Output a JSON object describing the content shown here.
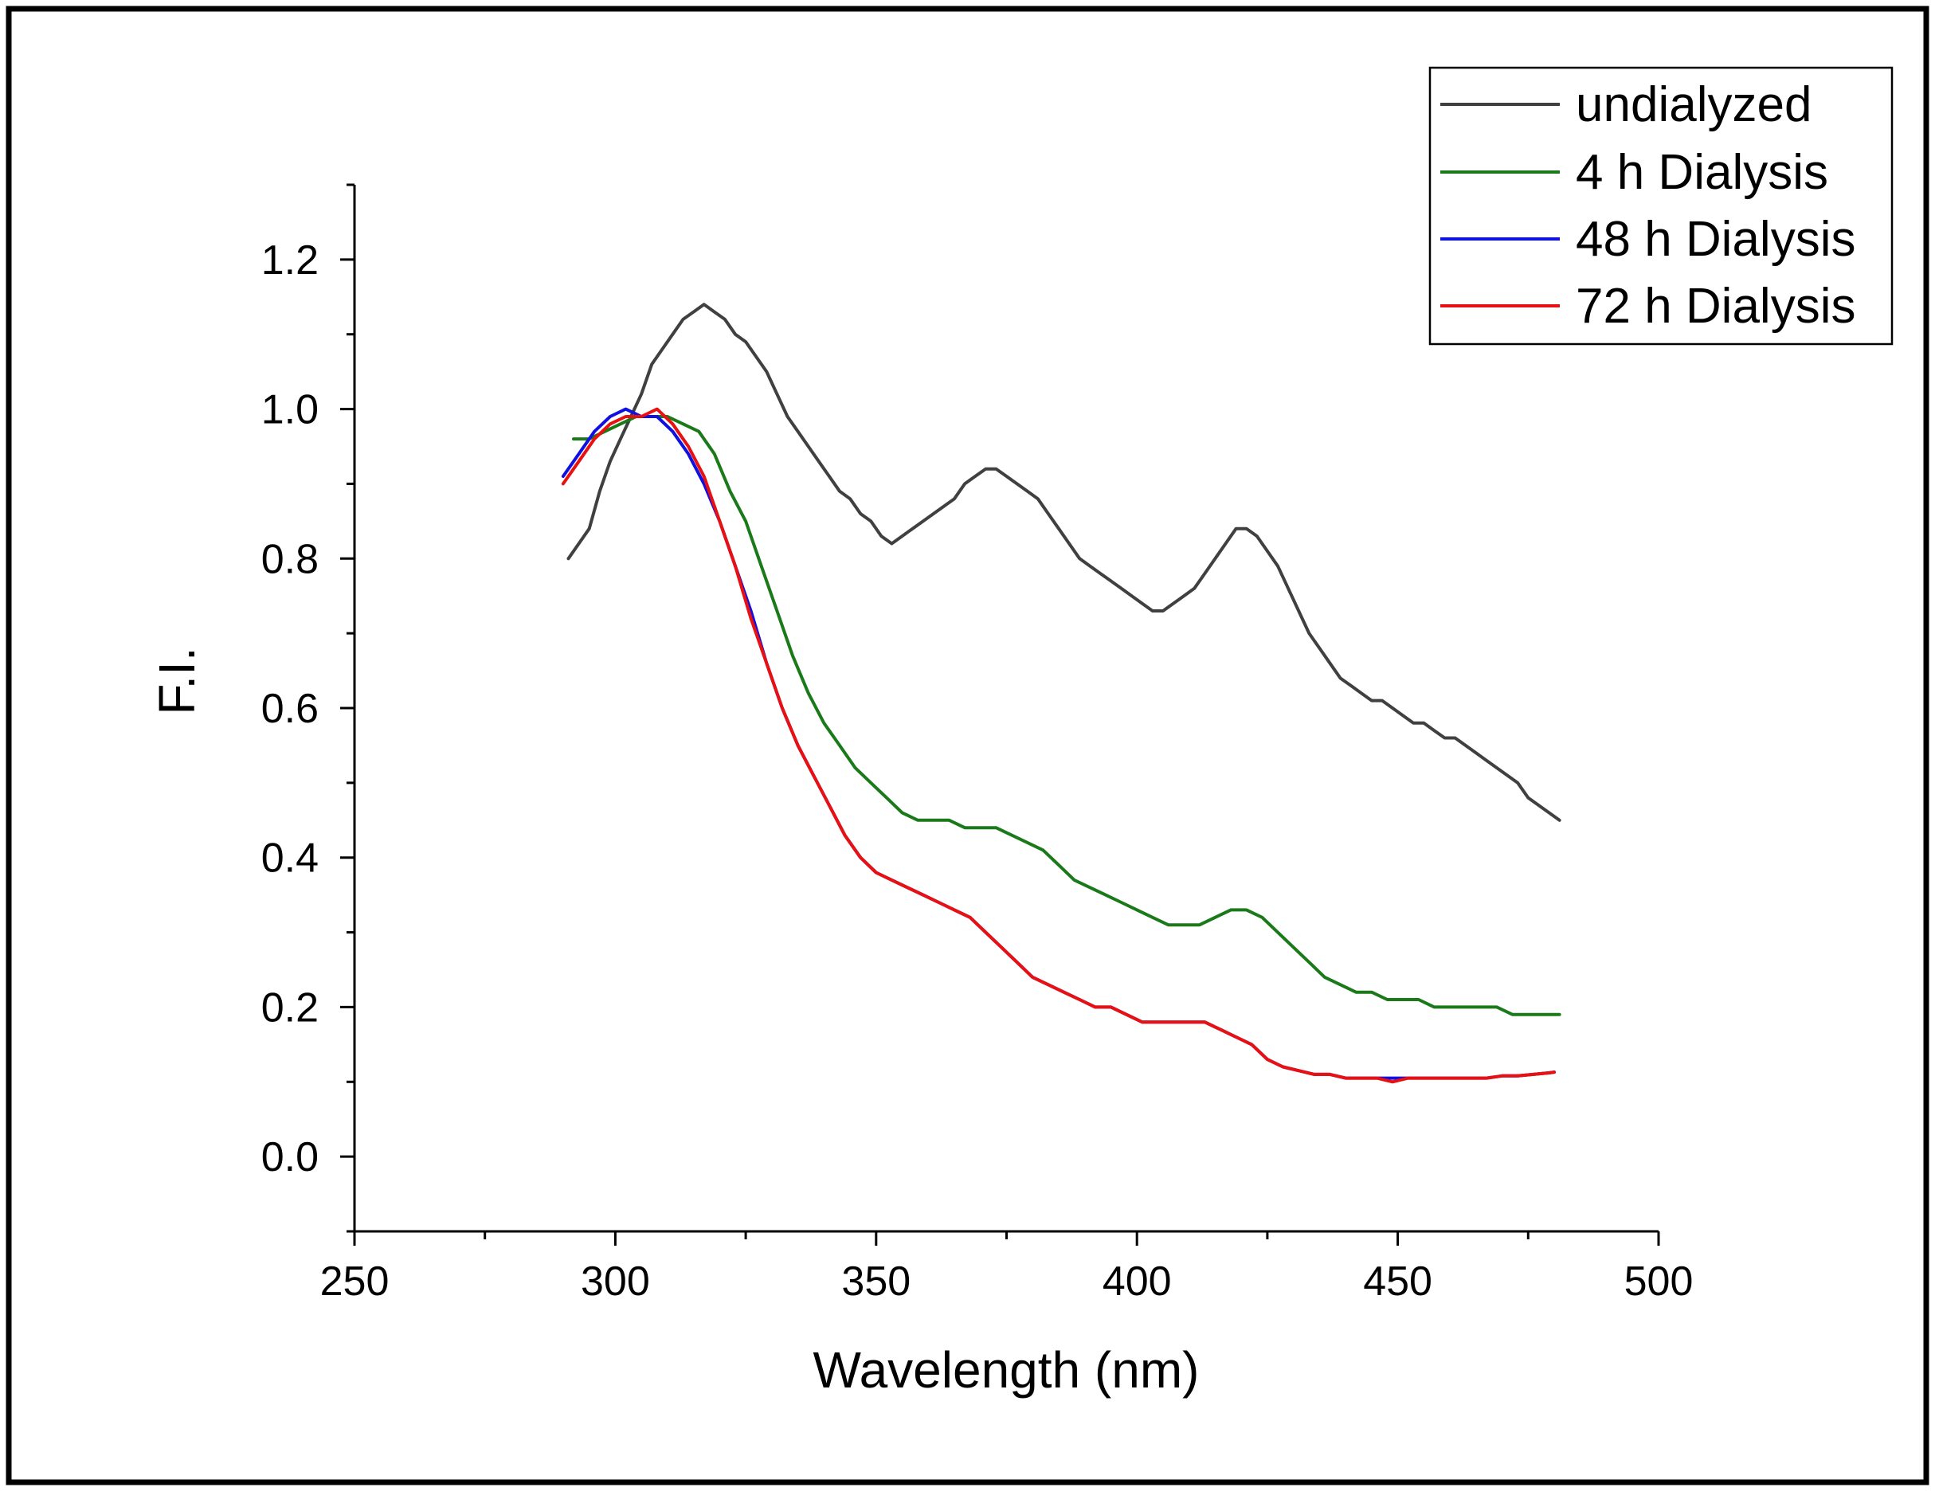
{
  "chart_data": {
    "type": "line",
    "title": "",
    "xlabel": "Wavelength (nm)",
    "ylabel": "F.I.",
    "xlim": [
      250,
      500
    ],
    "ylim": [
      -0.1,
      1.3
    ],
    "xticks": [
      250,
      300,
      350,
      400,
      450,
      500
    ],
    "xtick_labels": [
      "250",
      "300",
      "350",
      "400",
      "450",
      "500"
    ],
    "yticks": [
      0.0,
      0.2,
      0.4,
      0.6,
      0.8,
      1.0,
      1.2
    ],
    "ytick_labels": [
      "0.0",
      "0.2",
      "0.4",
      "0.6",
      "0.8",
      "1.0",
      "1.2"
    ],
    "grid": false,
    "legend_position": "top-right",
    "series": [
      {
        "name": "undialyzed",
        "color": "#404040",
        "x": [
          291,
          293,
          295,
          297,
          299,
          301,
          303,
          305,
          307,
          309,
          311,
          313,
          315,
          317,
          319,
          321,
          323,
          325,
          327,
          329,
          331,
          333,
          335,
          337,
          339,
          341,
          343,
          345,
          347,
          349,
          351,
          353,
          355,
          357,
          359,
          361,
          363,
          365,
          367,
          369,
          371,
          373,
          375,
          377,
          379,
          381,
          383,
          385,
          387,
          389,
          391,
          393,
          395,
          397,
          399,
          401,
          403,
          405,
          407,
          409,
          411,
          413,
          415,
          417,
          419,
          421,
          423,
          425,
          427,
          429,
          431,
          433,
          435,
          437,
          439,
          441,
          443,
          445,
          447,
          449,
          451,
          453,
          455,
          457,
          459,
          461,
          463,
          465,
          467,
          469,
          471,
          473,
          475,
          477,
          479,
          481
        ],
        "y": [
          0.8,
          0.82,
          0.84,
          0.89,
          0.93,
          0.96,
          0.99,
          1.02,
          1.06,
          1.08,
          1.1,
          1.12,
          1.13,
          1.14,
          1.13,
          1.12,
          1.1,
          1.09,
          1.07,
          1.05,
          1.02,
          0.99,
          0.97,
          0.95,
          0.93,
          0.91,
          0.89,
          0.88,
          0.86,
          0.85,
          0.83,
          0.82,
          0.83,
          0.84,
          0.85,
          0.86,
          0.87,
          0.88,
          0.9,
          0.91,
          0.92,
          0.92,
          0.91,
          0.9,
          0.89,
          0.88,
          0.86,
          0.84,
          0.82,
          0.8,
          0.79,
          0.78,
          0.77,
          0.76,
          0.75,
          0.74,
          0.73,
          0.73,
          0.74,
          0.75,
          0.76,
          0.78,
          0.8,
          0.82,
          0.84,
          0.84,
          0.83,
          0.81,
          0.79,
          0.76,
          0.73,
          0.7,
          0.68,
          0.66,
          0.64,
          0.63,
          0.62,
          0.61,
          0.61,
          0.6,
          0.59,
          0.58,
          0.58,
          0.57,
          0.56,
          0.56,
          0.55,
          0.54,
          0.53,
          0.52,
          0.51,
          0.5,
          0.48,
          0.47,
          0.46,
          0.45
        ]
      },
      {
        "name": "4 h Dialysis",
        "color": "#1a7a1a",
        "x": [
          292,
          295,
          298,
          301,
          304,
          307,
          310,
          313,
          316,
          319,
          322,
          325,
          328,
          331,
          334,
          337,
          340,
          343,
          346,
          349,
          352,
          355,
          358,
          361,
          364,
          367,
          370,
          373,
          376,
          379,
          382,
          385,
          388,
          391,
          394,
          397,
          400,
          403,
          406,
          409,
          412,
          415,
          418,
          421,
          424,
          427,
          430,
          433,
          436,
          439,
          442,
          445,
          448,
          451,
          454,
          457,
          460,
          463,
          466,
          469,
          472,
          475,
          478,
          481
        ],
        "y": [
          0.96,
          0.96,
          0.97,
          0.98,
          0.99,
          0.99,
          0.99,
          0.98,
          0.97,
          0.94,
          0.89,
          0.85,
          0.79,
          0.73,
          0.67,
          0.62,
          0.58,
          0.55,
          0.52,
          0.5,
          0.48,
          0.46,
          0.45,
          0.45,
          0.45,
          0.44,
          0.44,
          0.44,
          0.43,
          0.42,
          0.41,
          0.39,
          0.37,
          0.36,
          0.35,
          0.34,
          0.33,
          0.32,
          0.31,
          0.31,
          0.31,
          0.32,
          0.33,
          0.33,
          0.32,
          0.3,
          0.28,
          0.26,
          0.24,
          0.23,
          0.22,
          0.22,
          0.21,
          0.21,
          0.21,
          0.2,
          0.2,
          0.2,
          0.2,
          0.2,
          0.19,
          0.19,
          0.19,
          0.19
        ]
      },
      {
        "name": "48 h Dialysis",
        "color": "#1010e0",
        "x": [
          290,
          293,
          296,
          299,
          302,
          305,
          308,
          311,
          314,
          317,
          320,
          323,
          326,
          329,
          332,
          335,
          338,
          341,
          344,
          347,
          350,
          353,
          356,
          359,
          362,
          365,
          368,
          371,
          374,
          377,
          380,
          383,
          386,
          389,
          392,
          395,
          398,
          401,
          404,
          407,
          410,
          413,
          416,
          419,
          422,
          425,
          428,
          431,
          434,
          437,
          440,
          443,
          446,
          449,
          452,
          455,
          458,
          461,
          464,
          467,
          470,
          473,
          476,
          479,
          480
        ],
        "y": [
          0.91,
          0.94,
          0.97,
          0.99,
          1.0,
          0.99,
          0.99,
          0.97,
          0.94,
          0.9,
          0.85,
          0.79,
          0.73,
          0.66,
          0.6,
          0.55,
          0.51,
          0.47,
          0.43,
          0.4,
          0.38,
          0.37,
          0.36,
          0.35,
          0.34,
          0.33,
          0.32,
          0.3,
          0.28,
          0.26,
          0.24,
          0.23,
          0.22,
          0.21,
          0.2,
          0.2,
          0.19,
          0.18,
          0.18,
          0.18,
          0.18,
          0.18,
          0.17,
          0.16,
          0.15,
          0.13,
          0.12,
          0.115,
          0.11,
          0.11,
          0.105,
          0.105,
          0.105,
          0.105,
          0.105,
          0.105,
          0.105,
          0.105,
          0.105,
          0.105,
          0.108,
          0.108,
          0.11,
          0.112,
          0.113
        ]
      },
      {
        "name": "72 h Dialysis",
        "color": "#e81010",
        "x": [
          290,
          293,
          296,
          299,
          302,
          305,
          308,
          311,
          314,
          317,
          320,
          323,
          326,
          329,
          332,
          335,
          338,
          341,
          344,
          347,
          350,
          353,
          356,
          359,
          362,
          365,
          368,
          371,
          374,
          377,
          380,
          383,
          386,
          389,
          392,
          395,
          398,
          401,
          404,
          407,
          410,
          413,
          416,
          419,
          422,
          425,
          428,
          431,
          434,
          437,
          440,
          443,
          446,
          449,
          452,
          455,
          458,
          461,
          464,
          467,
          470,
          473,
          476,
          479,
          480
        ],
        "y": [
          0.9,
          0.93,
          0.96,
          0.98,
          0.99,
          0.99,
          1.0,
          0.98,
          0.95,
          0.91,
          0.85,
          0.79,
          0.72,
          0.66,
          0.6,
          0.55,
          0.51,
          0.47,
          0.43,
          0.4,
          0.38,
          0.37,
          0.36,
          0.35,
          0.34,
          0.33,
          0.32,
          0.3,
          0.28,
          0.26,
          0.24,
          0.23,
          0.22,
          0.21,
          0.2,
          0.2,
          0.19,
          0.18,
          0.18,
          0.18,
          0.18,
          0.18,
          0.17,
          0.16,
          0.15,
          0.13,
          0.12,
          0.115,
          0.11,
          0.11,
          0.105,
          0.105,
          0.105,
          0.1,
          0.105,
          0.105,
          0.105,
          0.105,
          0.105,
          0.105,
          0.108,
          0.108,
          0.11,
          0.112,
          0.113
        ]
      }
    ]
  }
}
